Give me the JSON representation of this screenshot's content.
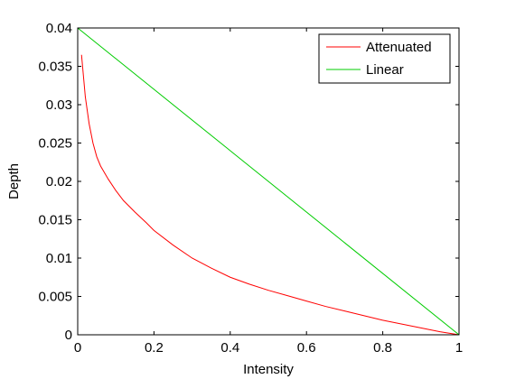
{
  "chart_data": {
    "type": "line",
    "title": "",
    "xlabel": "Intensity",
    "ylabel": "Depth",
    "xlim": [
      0,
      1
    ],
    "ylim": [
      0,
      0.04
    ],
    "x_ticks": [
      0,
      0.2,
      0.4,
      0.6,
      0.8,
      1
    ],
    "x_tick_labels": [
      "0",
      "0.2",
      "0.4",
      "0.6",
      "0.8",
      "1"
    ],
    "y_ticks": [
      0,
      0.005,
      0.01,
      0.015,
      0.02,
      0.025,
      0.03,
      0.035,
      0.04
    ],
    "y_tick_labels": [
      "0",
      "0.005",
      "0.01",
      "0.015",
      "0.02",
      "0.025",
      "0.03",
      "0.035",
      "0.04"
    ],
    "grid": false,
    "legend_position": "top-right",
    "series": [
      {
        "name": "Attenuated",
        "color": "#ff0000",
        "x": [
          0.01,
          0.02,
          0.03,
          0.04,
          0.05,
          0.06,
          0.08,
          0.1,
          0.12,
          0.15,
          0.18,
          0.2,
          0.25,
          0.3,
          0.35,
          0.4,
          0.45,
          0.5,
          0.55,
          0.6,
          0.65,
          0.7,
          0.75,
          0.8,
          0.85,
          0.9,
          0.95,
          1.0
        ],
        "y": [
          0.0365,
          0.031,
          0.0275,
          0.025,
          0.0232,
          0.022,
          0.0203,
          0.0188,
          0.0175,
          0.016,
          0.0146,
          0.0136,
          0.0117,
          0.01,
          0.0087,
          0.0075,
          0.0066,
          0.0058,
          0.0051,
          0.0044,
          0.0037,
          0.0031,
          0.0025,
          0.0019,
          0.0014,
          0.0009,
          0.0004,
          0.0
        ]
      },
      {
        "name": "Linear",
        "color": "#00cc00",
        "x": [
          0,
          1
        ],
        "y": [
          0.04,
          0
        ]
      }
    ]
  }
}
